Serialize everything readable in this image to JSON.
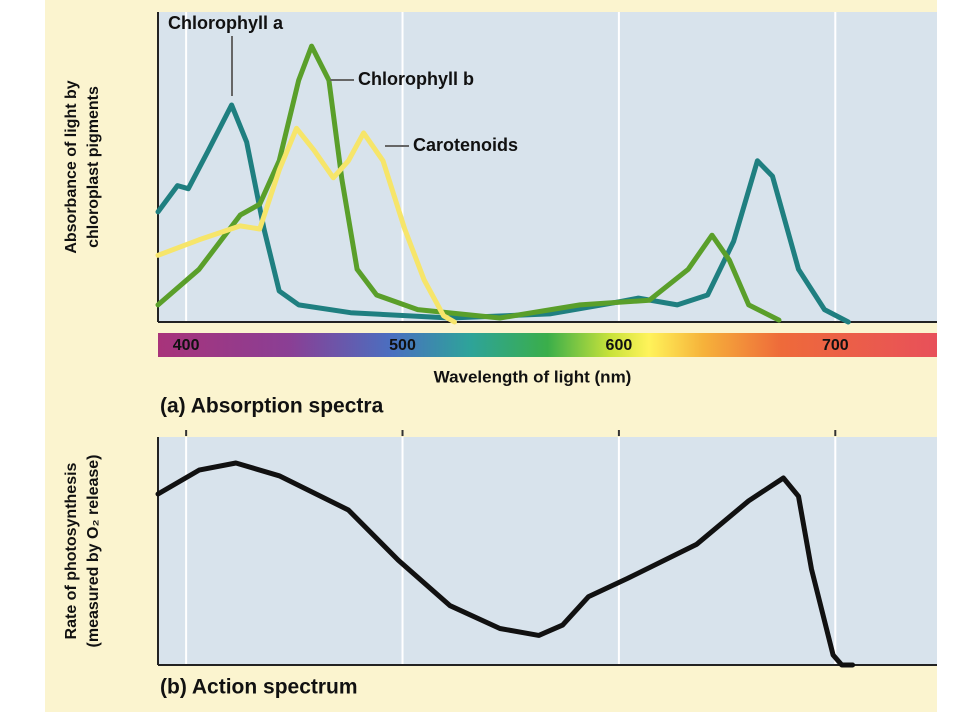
{
  "chart_data": [
    {
      "type": "line",
      "title": "(a) Absorption spectra",
      "xlabel": "Wavelength of light (nm)",
      "ylabel": [
        "Absorbance of light by",
        "chloroplast pigments"
      ],
      "xlim": [
        387,
        747
      ],
      "ylim": [
        0,
        1
      ],
      "xticks": [
        400,
        500,
        600,
        700
      ],
      "grid": true,
      "series": [
        {
          "name": "Chlorophyll a",
          "color": "#1f7f80",
          "x": [
            387,
            396,
            401,
            410,
            421,
            428,
            436,
            443,
            452,
            476,
            522,
            568,
            600,
            609,
            627,
            641,
            653,
            664,
            671,
            683,
            695,
            706
          ],
          "values": [
            0.355,
            0.44,
            0.43,
            0.55,
            0.7,
            0.58,
            0.3,
            0.1,
            0.055,
            0.03,
            0.013,
            0.026,
            0.065,
            0.077,
            0.055,
            0.087,
            0.26,
            0.52,
            0.47,
            0.17,
            0.04,
            0
          ]
        },
        {
          "name": "Chlorophyll b",
          "color": "#5a9f2a",
          "x": [
            387,
            406,
            425,
            434,
            443,
            452,
            458,
            466,
            472,
            479,
            488,
            507,
            545,
            582,
            614,
            632,
            643,
            651,
            660,
            674
          ],
          "values": [
            0.055,
            0.17,
            0.345,
            0.38,
            0.52,
            0.78,
            0.89,
            0.78,
            0.46,
            0.17,
            0.087,
            0.04,
            0.013,
            0.055,
            0.07,
            0.17,
            0.28,
            0.2,
            0.055,
            0.006
          ]
        },
        {
          "name": "Carotenoids",
          "color": "#f6e56a",
          "x": [
            387,
            406,
            425,
            434,
            443,
            451,
            459,
            468,
            475,
            482,
            491,
            501,
            510,
            519,
            524
          ],
          "values": [
            0.215,
            0.265,
            0.31,
            0.3,
            0.49,
            0.625,
            0.555,
            0.465,
            0.52,
            0.61,
            0.52,
            0.3,
            0.135,
            0.02,
            0
          ]
        }
      ]
    },
    {
      "type": "line",
      "title": "(b) Action spectrum",
      "ylabel": [
        "Rate of photosynthesis",
        "(measured by O₂ release)"
      ],
      "xlim": [
        387,
        747
      ],
      "ylim": [
        0,
        1
      ],
      "series": [
        {
          "color": "#111111",
          "x": [
            387,
            406,
            423,
            443,
            475,
            498,
            522,
            545,
            563,
            574,
            586,
            604,
            636,
            660,
            676,
            683,
            689,
            699,
            703,
            708
          ],
          "values": [
            0.75,
            0.855,
            0.886,
            0.83,
            0.68,
            0.46,
            0.26,
            0.16,
            0.13,
            0.175,
            0.3,
            0.38,
            0.53,
            0.72,
            0.82,
            0.74,
            0.42,
            0.044,
            0,
            0
          ]
        }
      ]
    }
  ]
}
